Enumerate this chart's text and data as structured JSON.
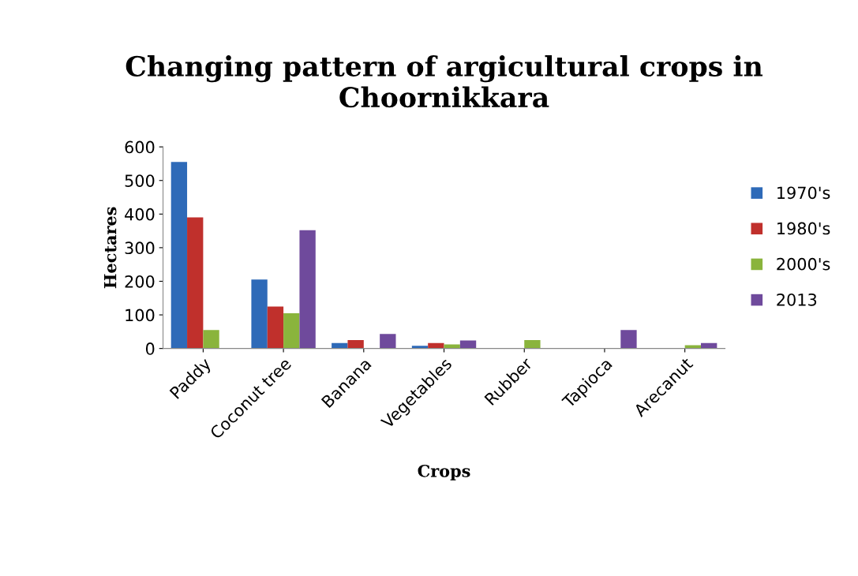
{
  "chart_data": {
    "type": "bar",
    "title": "Changing pattern of argicultural crops in Choornikkara",
    "xlabel": "Crops",
    "ylabel": "Hectares",
    "categories": [
      "Paddy",
      "Coconut tree",
      "Banana",
      "Vegetables",
      "Rubber",
      "Tapioca",
      "Arecanut"
    ],
    "series": [
      {
        "name": "1970's",
        "color": "#2e6ab8",
        "values": [
          555,
          205,
          16,
          8,
          null,
          null,
          null
        ]
      },
      {
        "name": "1980's",
        "color": "#c0302c",
        "values": [
          390,
          125,
          25,
          16,
          null,
          null,
          null
        ]
      },
      {
        "name": "2000's",
        "color": "#8ab43c",
        "values": [
          55,
          105,
          null,
          12,
          25,
          null,
          10
        ]
      },
      {
        "name": "2013",
        "color": "#6f4a9c",
        "values": [
          null,
          352,
          43,
          24,
          null,
          55,
          16
        ]
      }
    ],
    "ylim": [
      0,
      600
    ],
    "yticks": [
      0,
      100,
      200,
      300,
      400,
      500,
      600
    ],
    "grid": false,
    "legend": "right"
  }
}
